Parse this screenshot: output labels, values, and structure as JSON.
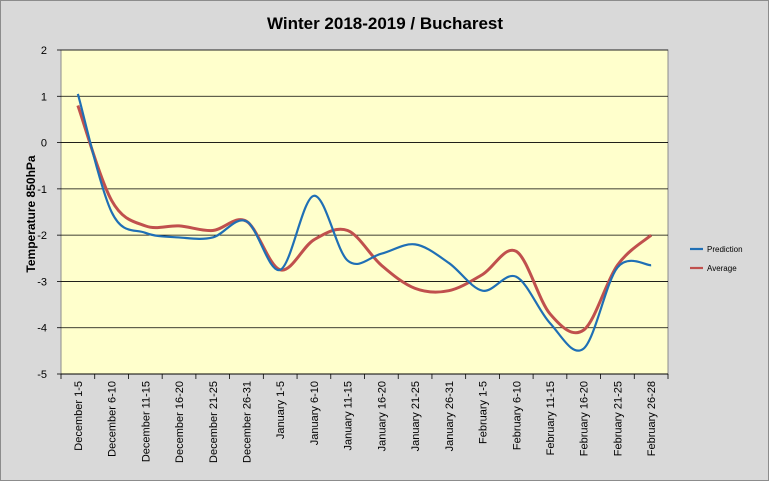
{
  "chart_data": {
    "type": "line",
    "title": "Winter 2018-2019 / Bucharest",
    "xlabel": "",
    "ylabel": "Temperature 850hPa",
    "ylim": [
      -5,
      2
    ],
    "yticks": [
      2,
      1,
      0,
      -1,
      -2,
      -3,
      -4,
      -5
    ],
    "grid": true,
    "legend_position": "right",
    "plot_background": "#ffffcc",
    "categories": [
      "December 1-5",
      "December 6-10",
      "December 11-15",
      "December 16-20",
      "December 21-25",
      "December 26-31",
      "January 1-5",
      "January 6-10",
      "January 11-15",
      "January 16-20",
      "January 21-25",
      "January 26-31",
      "February 1-5",
      "February 6-10",
      "February 11-15",
      "February 16-20",
      "February 21-25",
      "February 26-28"
    ],
    "series": [
      {
        "name": "Prediction",
        "color": "#1f6fb5",
        "values": [
          1.05,
          -1.5,
          -1.95,
          -2.05,
          -2.05,
          -1.7,
          -2.75,
          -1.15,
          -2.55,
          -2.4,
          -2.2,
          -2.6,
          -3.2,
          -2.9,
          -3.9,
          -4.45,
          -2.7,
          -2.65
        ]
      },
      {
        "name": "Average",
        "color": "#c0504d",
        "values": [
          0.8,
          -1.25,
          -1.8,
          -1.8,
          -1.9,
          -1.7,
          -2.75,
          -2.1,
          -1.9,
          -2.65,
          -3.15,
          -3.2,
          -2.85,
          -2.35,
          -3.7,
          -4.05,
          -2.65,
          -2.0
        ]
      }
    ]
  }
}
